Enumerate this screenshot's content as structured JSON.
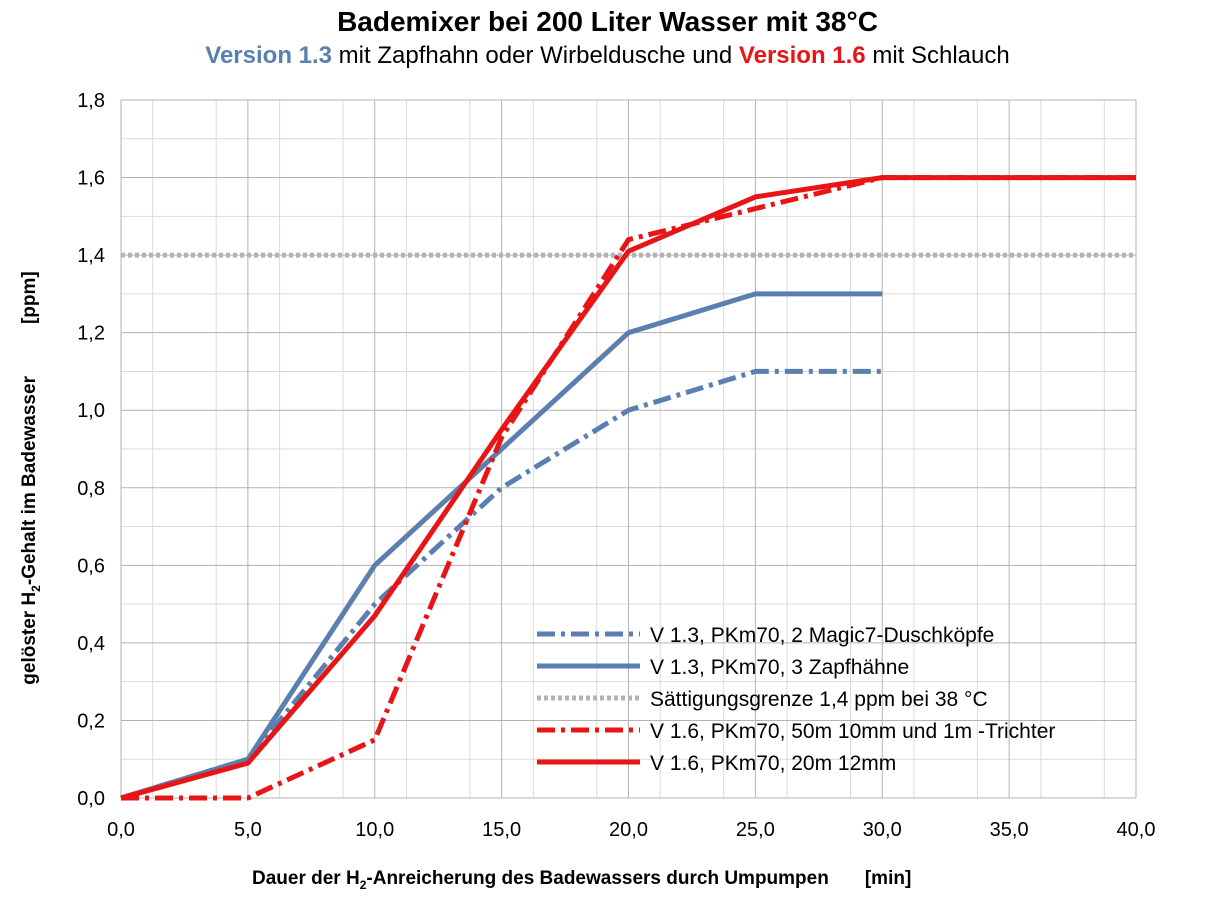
{
  "chart_data": {
    "type": "line",
    "title": "Bademixer bei 200 Liter Wasser mit 38°C",
    "subtitle": {
      "part1": "Version 1.3",
      "part2": " mit Zapfhahn oder Wirbeldusche und ",
      "part3": "Version 1.6",
      "part4": " mit Schlauch"
    },
    "ylabel": {
      "pre": "gelöster H",
      "sub": "2",
      "post": "-Gehalt im Badewasser",
      "unit": "[ppm]"
    },
    "xlabel": {
      "pre": "Dauer der H",
      "sub": "2",
      "post": "-Anreicherung des Badewassers durch Umpumpen",
      "unit": "[min]"
    },
    "xlim": [
      0,
      40
    ],
    "ylim": [
      0,
      1.8
    ],
    "xticks": [
      "0,0",
      "5,0",
      "10,0",
      "15,0",
      "20,0",
      "25,0",
      "30,0",
      "35,0",
      "40,0"
    ],
    "yticks": [
      "0,0",
      "0,2",
      "0,4",
      "0,6",
      "0,8",
      "1,0",
      "1,2",
      "1,4",
      "1,6",
      "1,8"
    ],
    "grid": true,
    "legend_position": "bottom-right",
    "series": [
      {
        "name": "V 1.3, PKm70, 2 Magic7-Duschköpfe",
        "color": "#5b7fae",
        "style": "dashdot",
        "x": [
          0,
          5,
          10,
          15,
          20,
          25,
          30
        ],
        "y": [
          0.0,
          0.1,
          0.5,
          0.8,
          1.0,
          1.1,
          1.1
        ]
      },
      {
        "name": "V 1.3, PKm70, 3 Zapfhähne",
        "color": "#5b7fae",
        "style": "solid",
        "x": [
          0,
          5,
          10,
          15,
          20,
          25,
          30
        ],
        "y": [
          0.0,
          0.1,
          0.6,
          0.9,
          1.2,
          1.3,
          1.3
        ]
      },
      {
        "name": "Sättigungsgrenze 1,4 ppm bei 38 °C",
        "color": "#b4b4b4",
        "style": "dotted",
        "x": [
          0,
          40
        ],
        "y": [
          1.4,
          1.4
        ]
      },
      {
        "name": "V 1.6, PKm70, 50m 10mm und 1m -Trichter",
        "color": "#e81416",
        "style": "dashdot",
        "x": [
          0,
          5,
          10,
          15,
          20,
          25,
          30,
          40
        ],
        "y": [
          0.0,
          0.0,
          0.15,
          0.93,
          1.44,
          1.52,
          1.6,
          1.6
        ]
      },
      {
        "name": "V 1.6, PKm70, 20m 12mm",
        "color": "#e81416",
        "style": "solid",
        "x": [
          0,
          5,
          10,
          15,
          20,
          25,
          30,
          40
        ],
        "y": [
          0.0,
          0.09,
          0.47,
          0.95,
          1.41,
          1.55,
          1.6,
          1.6
        ]
      }
    ]
  }
}
